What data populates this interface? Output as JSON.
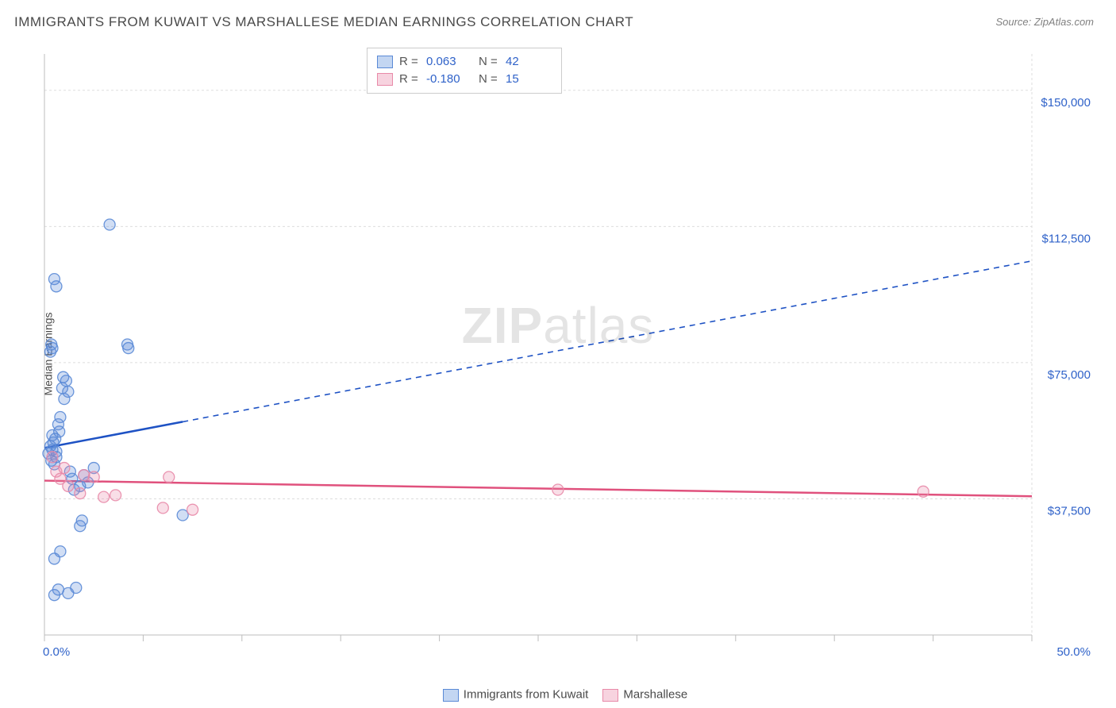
{
  "title": "IMMIGRANTS FROM KUWAIT VS MARSHALLESE MEDIAN EARNINGS CORRELATION CHART",
  "source": "Source: ZipAtlas.com",
  "ylabel": "Median Earnings",
  "watermark_html": "ZIPatlas",
  "chart": {
    "type": "scatter",
    "xlim": [
      0,
      50
    ],
    "ylim": [
      0,
      160000
    ],
    "x_tick_step": 5,
    "y_ticks": [
      37500,
      75000,
      112500,
      150000
    ],
    "y_tick_labels": [
      "$37,500",
      "$75,000",
      "$112,500",
      "$150,000"
    ],
    "x_min_label": "0.0%",
    "x_max_label": "50.0%",
    "background_color": "#ffffff",
    "grid_color": "#dddddd",
    "axis_color": "#bdbdbd",
    "label_color": "#2f62c9",
    "marker_radius": 7,
    "marker_fill_opacity": 0.28,
    "marker_stroke_opacity": 0.9,
    "series": [
      {
        "name": "Immigrants from Kuwait",
        "color": "#5a8ad6",
        "line_color": "#1e52c4",
        "R": "0.063",
        "N": "42",
        "points": [
          [
            0.2,
            50000
          ],
          [
            0.3,
            52000
          ],
          [
            0.35,
            48000
          ],
          [
            0.4,
            55000
          ],
          [
            0.4,
            51000
          ],
          [
            0.45,
            53000
          ],
          [
            0.5,
            47000
          ],
          [
            0.55,
            54000
          ],
          [
            0.6,
            50500
          ],
          [
            0.6,
            49000
          ],
          [
            0.7,
            58000
          ],
          [
            0.75,
            56000
          ],
          [
            0.8,
            60000
          ],
          [
            0.9,
            68000
          ],
          [
            0.95,
            71000
          ],
          [
            1.0,
            65000
          ],
          [
            1.1,
            70000
          ],
          [
            1.2,
            67000
          ],
          [
            1.3,
            45000
          ],
          [
            1.4,
            43000
          ],
          [
            0.3,
            78000
          ],
          [
            0.35,
            80000
          ],
          [
            0.4,
            79000
          ],
          [
            0.5,
            98000
          ],
          [
            0.6,
            96000
          ],
          [
            1.5,
            40000
          ],
          [
            1.8,
            41000
          ],
          [
            2.0,
            44000
          ],
          [
            2.2,
            42000
          ],
          [
            2.5,
            46000
          ],
          [
            3.3,
            113000
          ],
          [
            4.2,
            80000
          ],
          [
            4.25,
            79000
          ],
          [
            7.0,
            33000
          ],
          [
            0.5,
            11000
          ],
          [
            0.7,
            12500
          ],
          [
            1.2,
            11500
          ],
          [
            1.6,
            13000
          ],
          [
            0.5,
            21000
          ],
          [
            0.8,
            23000
          ],
          [
            1.8,
            30000
          ],
          [
            1.9,
            31500
          ]
        ],
        "trend": {
          "x1": 0,
          "y1": 51500,
          "x2": 50,
          "y2": 103000,
          "solid_until_x": 7
        }
      },
      {
        "name": "Marshallese",
        "color": "#e88aa8",
        "line_color": "#e0517d",
        "R": "-0.180",
        "N": "15",
        "points": [
          [
            0.4,
            49000
          ],
          [
            0.6,
            45000
          ],
          [
            0.8,
            43000
          ],
          [
            1.0,
            46000
          ],
          [
            1.2,
            41000
          ],
          [
            1.8,
            39000
          ],
          [
            2.0,
            44000
          ],
          [
            2.5,
            43500
          ],
          [
            3.0,
            38000
          ],
          [
            3.6,
            38500
          ],
          [
            6.0,
            35000
          ],
          [
            6.3,
            43500
          ],
          [
            7.5,
            34500
          ],
          [
            26.0,
            40000
          ],
          [
            44.5,
            39500
          ]
        ],
        "trend": {
          "x1": 0,
          "y1": 42500,
          "x2": 50,
          "y2": 38200,
          "solid_until_x": 50
        }
      }
    ]
  },
  "legend_top": {
    "rows": [
      {
        "swatch_fill": "#c3d6f2",
        "swatch_border": "#5a8ad6",
        "R": "0.063",
        "N": "42"
      },
      {
        "swatch_fill": "#f7d3df",
        "swatch_border": "#e88aa8",
        "R": "-0.180",
        "N": "15"
      }
    ]
  },
  "legend_bottom": {
    "items": [
      {
        "swatch_fill": "#c3d6f2",
        "swatch_border": "#5a8ad6",
        "label": "Immigrants from Kuwait"
      },
      {
        "swatch_fill": "#f7d3df",
        "swatch_border": "#e88aa8",
        "label": "Marshallese"
      }
    ]
  }
}
